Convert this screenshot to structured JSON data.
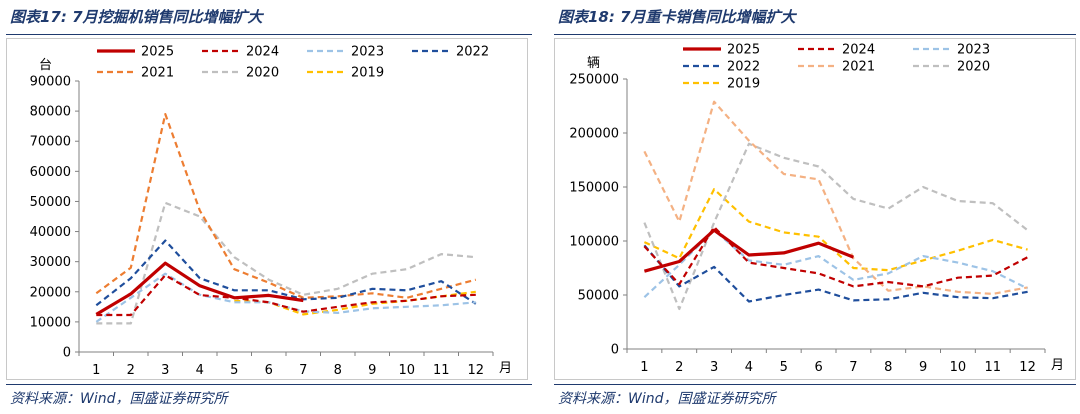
{
  "left": {
    "title": "图表17: 7月挖掘机销售同比增幅扩大",
    "source": "资料来源：Wind，国盛证券研究所",
    "chart_data": {
      "type": "line",
      "ylabel": "台",
      "xlabel": "月",
      "ylim": [
        0,
        90000
      ],
      "yticks": [
        "0",
        "10000",
        "20000",
        "30000",
        "40000",
        "50000",
        "60000",
        "70000",
        "80000",
        "90000"
      ],
      "categories": [
        "1",
        "2",
        "3",
        "4",
        "5",
        "6",
        "7",
        "8",
        "9",
        "10",
        "11",
        "12"
      ],
      "legend_placement": "top",
      "series": [
        {
          "name": "2025",
          "color": "#c00000",
          "style": "solid",
          "values": [
            12500,
            19300,
            29500,
            22000,
            18000,
            18800,
            17100,
            null,
            null,
            null,
            null,
            null
          ]
        },
        {
          "name": "2024",
          "color": "#c00000",
          "style": "dashed",
          "values": [
            12300,
            12300,
            25500,
            18900,
            18000,
            16500,
            13400,
            15000,
            16500,
            17000,
            18500,
            19000
          ]
        },
        {
          "name": "2023",
          "color": "#9dc3e6",
          "style": "dashed",
          "values": [
            10000,
            18000,
            26000,
            19000,
            16500,
            16500,
            13500,
            13000,
            14500,
            15000,
            15500,
            16500
          ]
        },
        {
          "name": "2022",
          "color": "#1f4e9c",
          "style": "dashed",
          "values": [
            15500,
            24500,
            37000,
            24500,
            20500,
            20500,
            17500,
            18000,
            21000,
            20500,
            23500,
            16000
          ]
        },
        {
          "name": "2021",
          "color": "#ed7d31",
          "style": "dashed",
          "values": [
            19500,
            28000,
            79000,
            47000,
            27500,
            23000,
            18000,
            18500,
            19500,
            18000,
            21000,
            24000
          ]
        },
        {
          "name": "2020",
          "color": "#bfbfbf",
          "style": "dashed",
          "values": [
            9500,
            9500,
            49500,
            45000,
            31500,
            24000,
            19000,
            21000,
            26000,
            27500,
            32500,
            31500
          ]
        },
        {
          "name": "2019",
          "color": "#ffc000",
          "style": "dashed",
          "values": [
            null,
            null,
            null,
            null,
            17000,
            16500,
            12500,
            14000,
            16000,
            17000,
            18500,
            20000
          ]
        }
      ]
    }
  },
  "right": {
    "title": "图表18: 7月重卡销售同比增幅扩大",
    "source": "资料来源：Wind，国盛证券研究所",
    "chart_data": {
      "type": "line",
      "ylabel": "辆",
      "xlabel": "月",
      "ylim": [
        0,
        250000
      ],
      "yticks": [
        "0",
        "50000",
        "100000",
        "150000",
        "200000",
        "250000"
      ],
      "categories": [
        "1",
        "2",
        "3",
        "4",
        "5",
        "6",
        "7",
        "8",
        "9",
        "10",
        "11",
        "12"
      ],
      "legend_placement": "top",
      "series": [
        {
          "name": "2025",
          "color": "#c00000",
          "style": "solid",
          "values": [
            72000,
            81000,
            110000,
            87000,
            89000,
            98000,
            85000,
            null,
            null,
            null,
            null,
            null
          ]
        },
        {
          "name": "2024",
          "color": "#c00000",
          "style": "dashed",
          "values": [
            95000,
            60000,
            113000,
            80000,
            75000,
            70000,
            58000,
            62000,
            58000,
            66000,
            68000,
            85000
          ]
        },
        {
          "name": "2023",
          "color": "#9dc3e6",
          "style": "dashed",
          "values": [
            48000,
            78000,
            110000,
            82000,
            78000,
            86000,
            64000,
            70000,
            86000,
            80000,
            72000,
            56000
          ]
        },
        {
          "name": "2022",
          "color": "#1f4e9c",
          "style": "dashed",
          "values": [
            96000,
            58000,
            76000,
            44000,
            50000,
            55000,
            45000,
            46000,
            52000,
            48000,
            47000,
            53000
          ]
        },
        {
          "name": "2021",
          "color": "#f4b183",
          "style": "dashed",
          "values": [
            183000,
            118000,
            229000,
            193000,
            162000,
            157000,
            84000,
            54000,
            58000,
            53000,
            51000,
            57000
          ]
        },
        {
          "name": "2020",
          "color": "#bfbfbf",
          "style": "dashed",
          "values": [
            117000,
            37000,
            117000,
            190000,
            177000,
            169000,
            139000,
            130000,
            150000,
            137000,
            135000,
            110000
          ]
        },
        {
          "name": "2019",
          "color": "#ffc000",
          "style": "dashed",
          "values": [
            99000,
            84000,
            148000,
            118000,
            108000,
            104000,
            75000,
            73000,
            82000,
            91000,
            101000,
            92000
          ]
        }
      ]
    }
  }
}
